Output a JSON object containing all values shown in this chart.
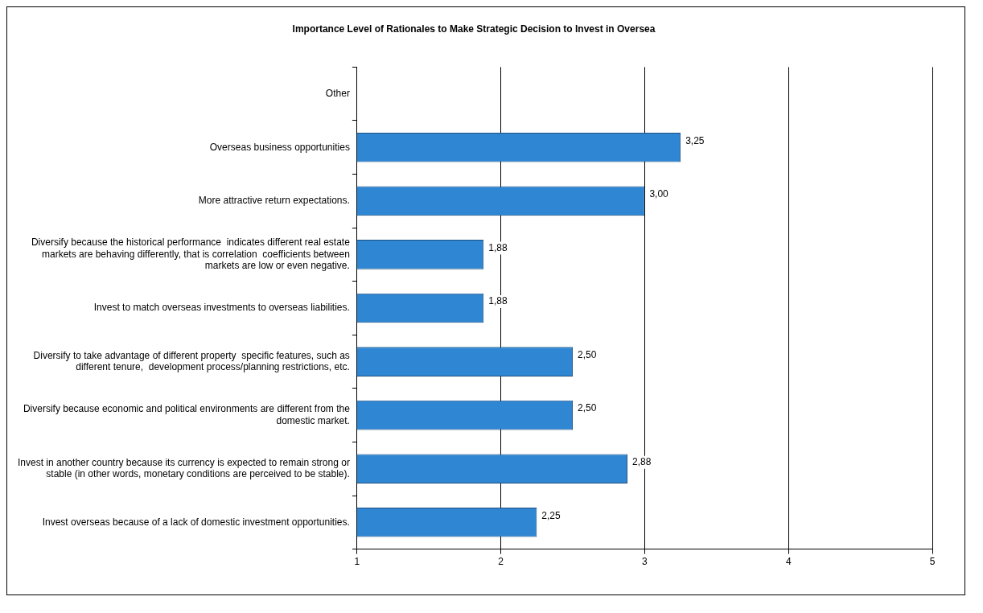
{
  "chart_data": {
    "type": "bar",
    "orientation": "horizontal",
    "title": "Importance Level of Rationales to Make Strategic Decision to Invest in Oversea",
    "categories": [
      "Other",
      "Overseas business opportunities",
      "More attractive return expectations.",
      "Diversify because the historical performance  indicates different real estate markets are behaving differently, that is correlation  coefficients between markets are low or even negative.",
      "Invest to match overseas investments to overseas liabilities.",
      "Diversify to take advantage of different property  specific features, such as different tenure,  development process/planning restrictions, etc.",
      "Diversify because economic and political environments are different from the domestic market.",
      "Invest in another country because its currency is expected to remain strong or stable (in other words, monetary conditions are perceived to be stable).",
      "Invest overseas because of a lack of domestic investment opportunities."
    ],
    "values": [
      null,
      3.25,
      3.0,
      1.88,
      1.88,
      2.5,
      2.5,
      2.88,
      2.25
    ],
    "value_labels": [
      null,
      "3,25",
      "3,00",
      "1,88",
      "1,88",
      "2,50",
      "2,50",
      "2,88",
      "2,25"
    ],
    "color": "#2f86d2",
    "xlim": [
      1,
      5
    ],
    "xticks": [
      1,
      2,
      3,
      4,
      5
    ],
    "grid": "x"
  }
}
